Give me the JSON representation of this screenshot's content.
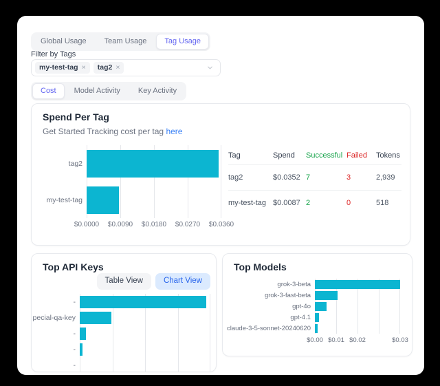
{
  "colors": {
    "background": "#000000",
    "panel": "#ffffff",
    "bar_cyan": "#0cb5d1",
    "accent_indigo": "#6366f1",
    "link_blue": "#3b82f6",
    "success_green": "#16a34a",
    "fail_red": "#dc2626"
  },
  "usage_tabs": [
    {
      "label": "Global Usage",
      "active": false
    },
    {
      "label": "Team Usage",
      "active": false
    },
    {
      "label": "Tag Usage",
      "active": true
    }
  ],
  "filter": {
    "label": "Filter by Tags",
    "tags": [
      "my-test-tag",
      "tag2"
    ],
    "remove_icon": "×"
  },
  "view_tabs": [
    {
      "label": "Cost",
      "active": true
    },
    {
      "label": "Model Activity",
      "active": false
    },
    {
      "label": "Key Activity",
      "active": false
    }
  ],
  "spend_card": {
    "title": "Spend Per Tag",
    "subtitle_text": "Get Started Tracking cost per tag",
    "subtitle_link": "here",
    "chart_data": {
      "type": "bar",
      "orientation": "horizontal",
      "categories": [
        "tag2",
        "my-test-tag"
      ],
      "values": [
        0.0352,
        0.0087
      ],
      "xlim": [
        0,
        0.036
      ],
      "xticks": [
        "$0.0000",
        "$0.0090",
        "$0.0180",
        "$0.0270",
        "$0.0360"
      ],
      "grid": true
    },
    "table": {
      "columns": [
        {
          "label": "Tag",
          "color": "gray"
        },
        {
          "label": "Spend",
          "color": "gray"
        },
        {
          "label": "Successful",
          "color": "green"
        },
        {
          "label": "Failed",
          "color": "red"
        },
        {
          "label": "Tokens",
          "color": "gray"
        }
      ],
      "rows": [
        [
          "tag2",
          "$0.0352",
          "7",
          "3",
          "2,939"
        ],
        [
          "my-test-tag",
          "$0.0087",
          "2",
          "0",
          "518"
        ]
      ]
    }
  },
  "api_keys_card": {
    "title": "Top API Keys",
    "buttons": [
      {
        "label": "Table View",
        "active": false
      },
      {
        "label": "Chart View",
        "active": true
      }
    ],
    "chart_data": {
      "type": "bar",
      "orientation": "horizontal",
      "categories": [
        "-",
        "pecial-qa-key",
        "-",
        "-",
        "-"
      ],
      "values": [
        0.97,
        0.24,
        0.045,
        0.022,
        0
      ],
      "xlim": [
        0,
        1
      ],
      "xticks": [],
      "grid": true
    }
  },
  "models_card": {
    "title": "Top Models",
    "chart_data": {
      "type": "bar",
      "orientation": "horizontal",
      "categories": [
        "grok-3-beta",
        "grok-3-fast-beta",
        "gpt-4o",
        "gpt-4.1",
        "claude-3-5-sonnet-20240620"
      ],
      "values": [
        0.03,
        0.008,
        0.004,
        0.0015,
        0.001
      ],
      "xlim": [
        0,
        0.03
      ],
      "xticks": [
        "$0.00",
        "$0.01",
        "$0.02",
        "",
        "$0.03"
      ],
      "grid": true
    }
  }
}
